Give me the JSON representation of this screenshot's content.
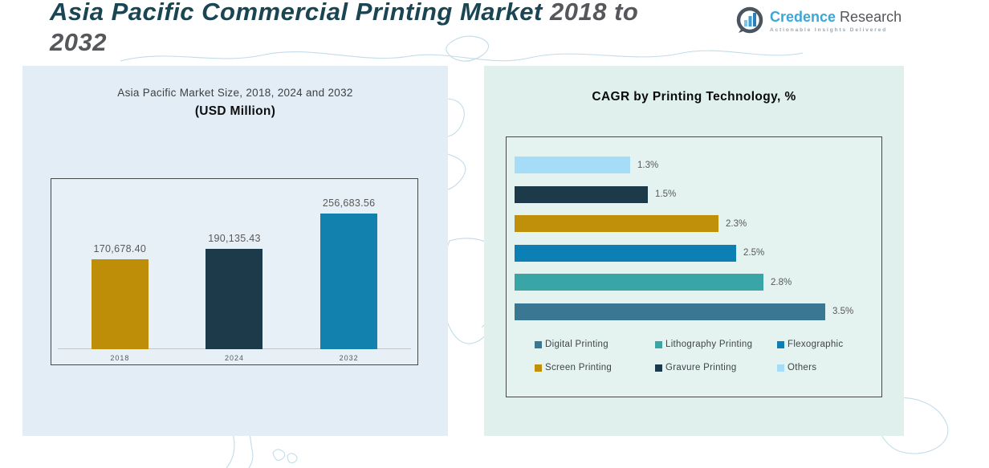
{
  "page": {
    "title_teal": "Asia Pacific Commercial Printing Market",
    "title_gray1": " 2018 to",
    "title_gray2": "2032"
  },
  "logo": {
    "brand_primary": "Credence",
    "brand_secondary": " Research",
    "tagline": "Actionable Insights Delivered"
  },
  "left_chart": {
    "title_line1": "Asia Pacific Market Size, 2018, 2024 and 2032",
    "title_line2": "(USD Million)"
  },
  "right_chart": {
    "title": "CAGR by Printing Technology, %"
  },
  "colors": {
    "title_teal": "#1A4553",
    "title_gray": "#55575A",
    "panel_left_bg": "#E3EDF6",
    "panel_right_bg": "#DFF0ED",
    "gold": "#BE8E09",
    "dark_navy": "#1C3A4A",
    "bright_blue": "#0C80B5",
    "steel_blue": "#3A7793",
    "teal": "#39A5A7",
    "light_blue": "#A5DCF7",
    "brand_blue": "#3BA7D9"
  },
  "chart_data": [
    {
      "type": "bar",
      "title": "Asia Pacific Market Size, 2018, 2024 and 2032 (USD Million)",
      "categories": [
        "2018",
        "2024",
        "2032"
      ],
      "values": [
        170678.4,
        190135.43,
        256683.56
      ],
      "data_labels": [
        "170,678.40",
        "190,135.43",
        "256,683.56"
      ],
      "bar_colors": [
        "#BE8E09",
        "#1C3A4A",
        "#1281AD"
      ],
      "xlabel": "",
      "ylabel": "USD Million",
      "ylim": [
        0,
        280000
      ],
      "grid": false,
      "legend_position": "none"
    },
    {
      "type": "bar",
      "orientation": "horizontal",
      "title": "CAGR by Printing Technology, %",
      "categories": [
        "Others",
        "Gravure Printing",
        "Screen Printing",
        "Flexographic",
        "Lithography Printing",
        "Digital Printing"
      ],
      "values": [
        1.3,
        1.5,
        2.3,
        2.5,
        2.8,
        3.5
      ],
      "data_labels": [
        "1.3%",
        "1.5%",
        "2.3%",
        "2.5%",
        "2.8%",
        "3.5%"
      ],
      "bar_colors": [
        "#A5DCF7",
        "#1C3A4A",
        "#C1900B",
        "#0C80B5",
        "#39A5A7",
        "#3A7793"
      ],
      "xlabel": "CAGR %",
      "xlim": [
        0,
        3.9
      ],
      "grid": false,
      "legend_position": "bottom",
      "legend_items": [
        {
          "label": "Digital Printing",
          "color": "#3A7793"
        },
        {
          "label": "Lithography Printing",
          "color": "#39A5A7"
        },
        {
          "label": "Flexographic",
          "color": "#0C80B5"
        },
        {
          "label": "Screen Printing",
          "color": "#C1900B"
        },
        {
          "label": "Gravure Printing",
          "color": "#1C3A4A"
        },
        {
          "label": "Others",
          "color": "#A5DCF7"
        }
      ]
    }
  ]
}
